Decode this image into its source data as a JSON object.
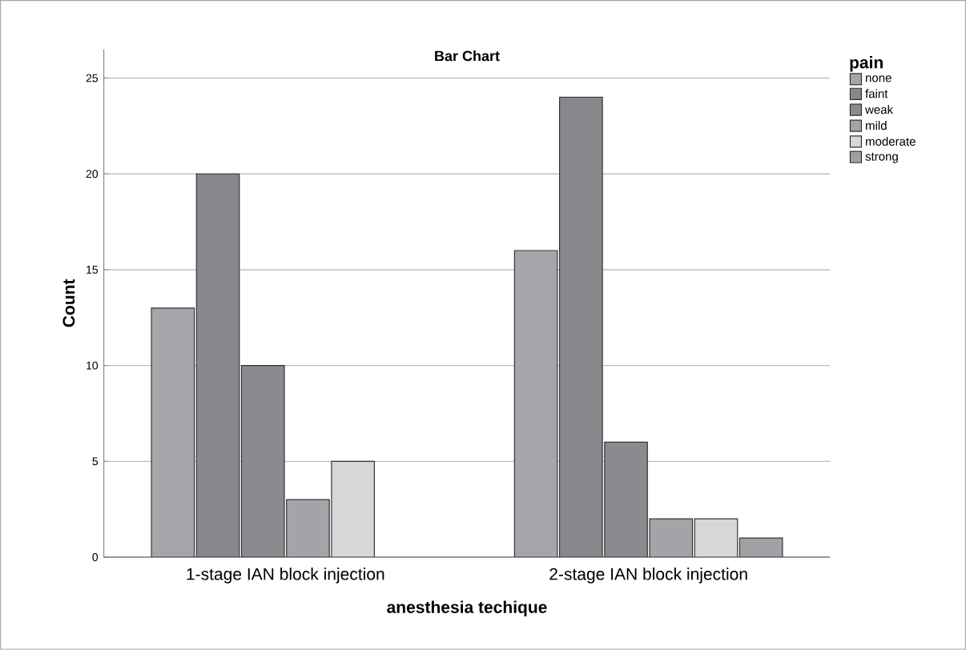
{
  "chart_data": {
    "type": "bar",
    "title": "Bar Chart",
    "xlabel": "anesthesia techique",
    "ylabel": "Count",
    "legend_title": "pain",
    "categories": [
      "1-stage IAN block injection",
      "2-stage IAN block injection"
    ],
    "series": [
      {
        "name": "none",
        "color": "#a5a6aa",
        "values": [
          13,
          16
        ]
      },
      {
        "name": "faint",
        "color": "#87888c",
        "values": [
          20,
          24
        ]
      },
      {
        "name": "weak",
        "color": "#8a8b8f",
        "values": [
          10,
          6
        ]
      },
      {
        "name": "mild",
        "color": "#a3a4a8",
        "values": [
          3,
          2
        ]
      },
      {
        "name": "moderate",
        "color": "#d6d7d9",
        "values": [
          5,
          2
        ]
      },
      {
        "name": "strong",
        "color": "#a0a1a5",
        "values": [
          null,
          1
        ]
      }
    ],
    "ylim": [
      0,
      26.5
    ],
    "yticks": [
      0,
      5,
      10,
      15,
      20,
      25
    ],
    "grid": "y",
    "legend": "right"
  }
}
